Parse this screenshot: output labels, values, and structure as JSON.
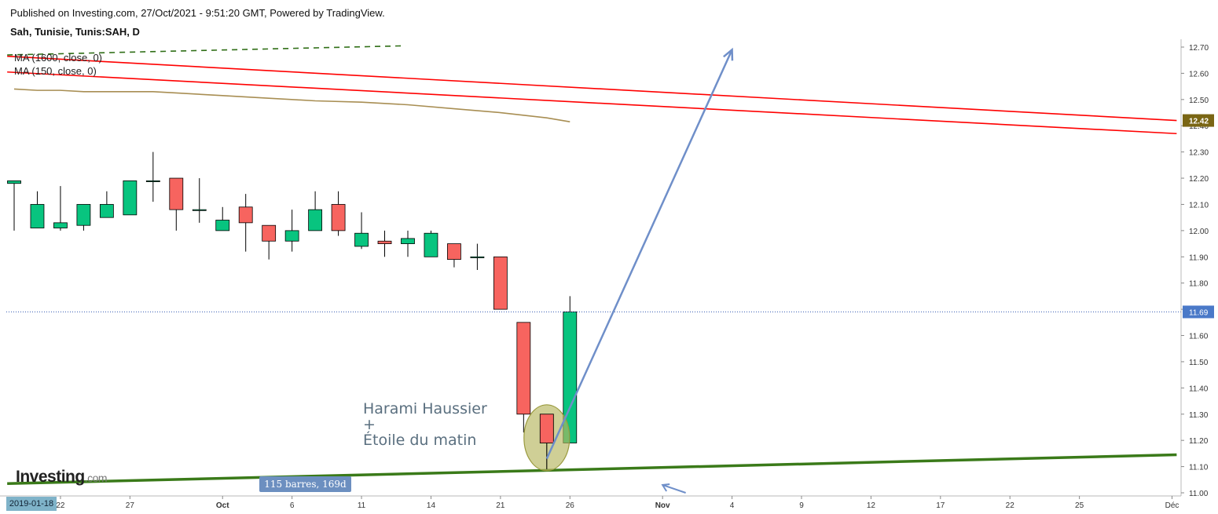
{
  "header": {
    "published": "Published on Investing.com, 27/Oct/2021 - 9:51:20 GMT, Powered by TradingView.",
    "symbol": "Sah, Tunisie, Tunis:SAH, D"
  },
  "legend": {
    "ma1": "MA (1600, close, 0)",
    "ma2": "MA (150, close, 0)"
  },
  "brand": {
    "name": "Investing",
    "suffix": ".com"
  },
  "annotations": {
    "pattern_line1": "Harami Haussier",
    "pattern_line2": "+",
    "pattern_line3": "Étoile du matin",
    "range_badge": "115 barres, 169d",
    "cursor_date": "2019-01-18"
  },
  "colors": {
    "up": "#08c47f",
    "down": "#f7645f",
    "ma150": "#a88e53",
    "ma1600": "#2f6e16",
    "channel": "#ff0000",
    "support": "#3a7a19",
    "arrow": "#6f8fc9",
    "price_badge": "#4a79c8",
    "ma_badge": "#7a6614",
    "ellipse": "#b5b55e"
  },
  "chart_data": {
    "type": "candlestick",
    "ylim": [
      11.0,
      12.7
    ],
    "y_ticks": [
      "12.70",
      "12.60",
      "12.50",
      "12.40",
      "12.30",
      "12.20",
      "12.10",
      "12.00",
      "11.90",
      "11.80",
      "11.70",
      "11.60",
      "11.50",
      "11.40",
      "11.30",
      "11.20",
      "11.10",
      "11.00"
    ],
    "x_ticks": [
      {
        "label": "22",
        "i": 2
      },
      {
        "label": "27",
        "i": 5
      },
      {
        "label": "Oct",
        "i": 9
      },
      {
        "label": "6",
        "i": 12
      },
      {
        "label": "11",
        "i": 15
      },
      {
        "label": "14",
        "i": 18
      },
      {
        "label": "21",
        "i": 21
      },
      {
        "label": "26",
        "i": 24
      },
      {
        "label": "Nov",
        "i": 28
      },
      {
        "label": "4",
        "i": 31
      },
      {
        "label": "9",
        "i": 34
      },
      {
        "label": "12",
        "i": 37
      },
      {
        "label": "17",
        "i": 40
      },
      {
        "label": "22",
        "i": 43
      },
      {
        "label": "25",
        "i": 46
      },
      {
        "label": "Déc",
        "i": 50
      }
    ],
    "candles": [
      {
        "o": 12.18,
        "h": 12.19,
        "l": 12.0,
        "c": 12.19
      },
      {
        "o": 12.01,
        "h": 12.15,
        "l": 12.01,
        "c": 12.1
      },
      {
        "o": 12.01,
        "h": 12.17,
        "l": 12.0,
        "c": 12.03
      },
      {
        "o": 12.02,
        "h": 12.1,
        "l": 12.0,
        "c": 12.1
      },
      {
        "o": 12.05,
        "h": 12.15,
        "l": 12.05,
        "c": 12.1
      },
      {
        "o": 12.06,
        "h": 12.19,
        "l": 12.06,
        "c": 12.19
      },
      {
        "o": 12.19,
        "h": 12.3,
        "l": 12.11,
        "c": 12.19
      },
      {
        "o": 12.2,
        "h": 12.2,
        "l": 12.0,
        "c": 12.08
      },
      {
        "o": 12.08,
        "h": 12.2,
        "l": 12.03,
        "c": 12.08
      },
      {
        "o": 12.0,
        "h": 12.09,
        "l": 12.0,
        "c": 12.04
      },
      {
        "o": 12.09,
        "h": 12.14,
        "l": 11.92,
        "c": 12.03
      },
      {
        "o": 12.02,
        "h": 12.02,
        "l": 11.89,
        "c": 11.96
      },
      {
        "o": 11.96,
        "h": 12.08,
        "l": 11.92,
        "c": 12.0
      },
      {
        "o": 12.0,
        "h": 12.15,
        "l": 12.0,
        "c": 12.08
      },
      {
        "o": 12.1,
        "h": 12.15,
        "l": 11.98,
        "c": 12.0
      },
      {
        "o": 11.94,
        "h": 12.07,
        "l": 11.93,
        "c": 11.99
      },
      {
        "o": 11.96,
        "h": 12.0,
        "l": 11.9,
        "c": 11.95
      },
      {
        "o": 11.95,
        "h": 12.0,
        "l": 11.9,
        "c": 11.97
      },
      {
        "o": 11.9,
        "h": 12.0,
        "l": 11.9,
        "c": 11.99
      },
      {
        "o": 11.95,
        "h": 11.95,
        "l": 11.86,
        "c": 11.89
      },
      {
        "o": 11.9,
        "h": 11.95,
        "l": 11.85,
        "c": 11.9
      },
      {
        "o": 11.9,
        "h": 11.9,
        "l": 11.7,
        "c": 11.7
      },
      {
        "o": 11.65,
        "h": 11.65,
        "l": 11.23,
        "c": 11.3
      },
      {
        "o": 11.3,
        "h": 11.3,
        "l": 11.09,
        "c": 11.19
      },
      {
        "o": 11.19,
        "h": 11.75,
        "l": 11.19,
        "c": 11.69
      }
    ],
    "ma150": [
      {
        "i": 0,
        "v": 12.54
      },
      {
        "i": 1,
        "v": 12.535
      },
      {
        "i": 2,
        "v": 12.535
      },
      {
        "i": 3,
        "v": 12.53
      },
      {
        "i": 6,
        "v": 12.53
      },
      {
        "i": 7,
        "v": 12.525
      },
      {
        "i": 9,
        "v": 12.515
      },
      {
        "i": 11,
        "v": 12.505
      },
      {
        "i": 13,
        "v": 12.495
      },
      {
        "i": 15,
        "v": 12.49
      },
      {
        "i": 17,
        "v": 12.48
      },
      {
        "i": 19,
        "v": 12.465
      },
      {
        "i": 21,
        "v": 12.45
      },
      {
        "i": 23,
        "v": 12.43
      },
      {
        "i": 24,
        "v": 12.415
      }
    ],
    "ma1600": [
      {
        "i": -0.3,
        "v": 12.67
      },
      {
        "i": 16.9,
        "v": 12.705
      }
    ],
    "current_price": "11.69",
    "ma_value": "12.42",
    "channel_upper": [
      {
        "i": -0.3,
        "v": 12.665
      },
      {
        "i": 50.2,
        "v": 12.42
      }
    ],
    "channel_lower": [
      {
        "i": -0.3,
        "v": 12.605
      },
      {
        "i": 50.2,
        "v": 12.37
      }
    ],
    "support_line": [
      {
        "i": -0.3,
        "v": 11.035
      },
      {
        "i": 50.2,
        "v": 11.145
      }
    ],
    "arrow_main": [
      {
        "i": 23.0,
        "v": 11.13
      },
      {
        "i": 31.0,
        "v": 12.69
      }
    ],
    "arrow_small": [
      {
        "i": 28.0,
        "v": 11.03
      },
      {
        "i": 29.0,
        "v": 11.0
      }
    ],
    "ellipse_center": {
      "i": 23.0,
      "v": 11.21
    }
  }
}
